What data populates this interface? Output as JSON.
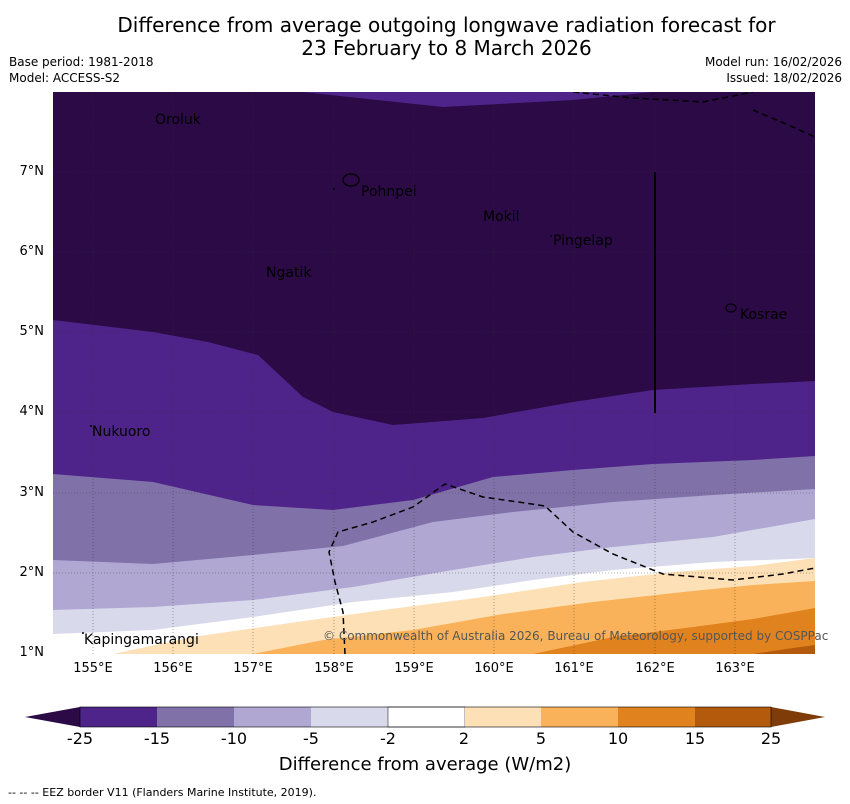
{
  "title_line1": "Difference from average outgoing longwave radiation forecast for",
  "title_line2": "23 February to 8 March 2026",
  "base_period": "Base period: 1981-2018",
  "model": "Model: ACCESS-S2",
  "model_run": "Model run: 16/02/2026",
  "issued": "Issued: 18/02/2026",
  "lat_ticks": [
    "7°N",
    "6°N",
    "5°N",
    "4°N",
    "3°N",
    "2°N",
    "1°N"
  ],
  "lon_ticks": [
    "155°E",
    "156°E",
    "157°E",
    "158°E",
    "159°E",
    "160°E",
    "161°E",
    "162°E",
    "163°E"
  ],
  "places": {
    "oroluk": "Oroluk",
    "pohnpei": "Pohnpei",
    "mokil": "Mokil",
    "pingelap": "Pingelap",
    "ngatik": "Ngatik",
    "kosrae": "Kosrae",
    "nukuoro": "Nukuoro",
    "kapingamarangi": "Kapingamarangi"
  },
  "copyright": "© Commonwealth of Australia 2026, Bureau of Meteorology, supported by COSPPac",
  "colorbar": {
    "labels": [
      "-25",
      "-15",
      "-10",
      "-5",
      "-2",
      "2",
      "5",
      "10",
      "15",
      "25"
    ],
    "colors": [
      "#2b0a45",
      "#4f248a",
      "#8071a9",
      "#b0a8d2",
      "#d9d9ec",
      "#ffffff",
      "#fde0b6",
      "#fab25a",
      "#e0821e",
      "#b45a0c",
      "#7f3b08"
    ],
    "title": "Difference from average (W/m2)"
  },
  "footer": "--  --  -- EEZ border V11 (Flanders Marine Institute, 2019)."
}
